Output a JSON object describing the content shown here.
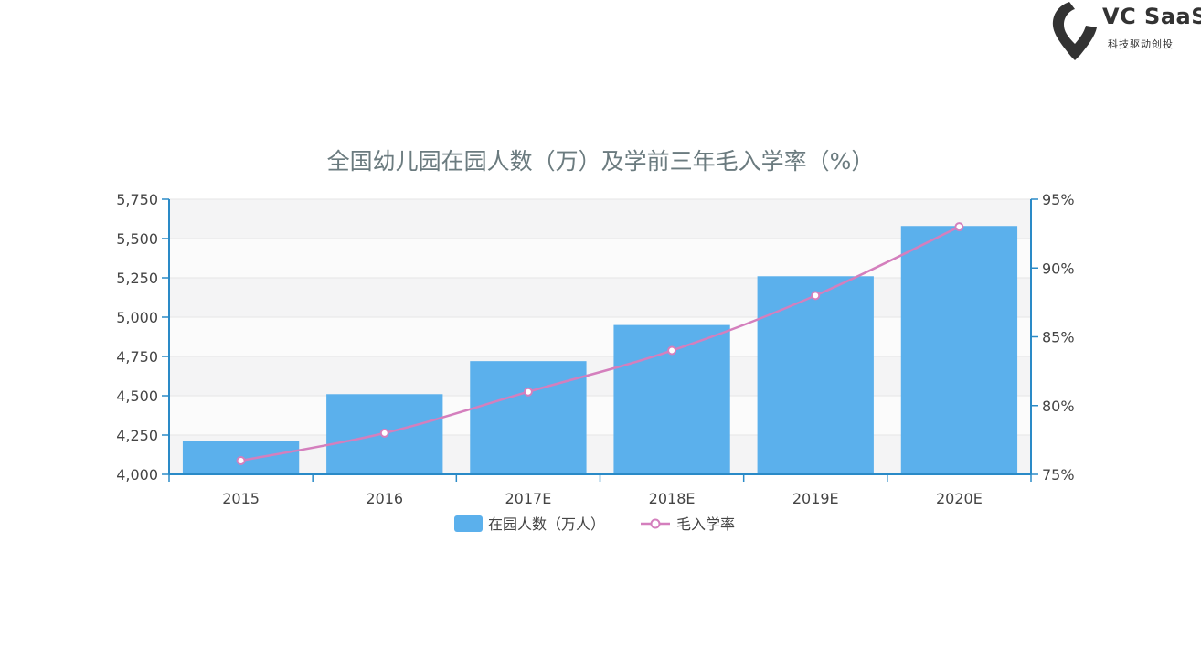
{
  "brand": {
    "name": "VC SaaS",
    "tagline": "科技驱动创投",
    "logo_icon": "location-pin-icon",
    "color": "#333333"
  },
  "chart_data": {
    "type": "bar",
    "title": "全国幼儿园在园人数（万）及学前三年毛入学率（%）",
    "categories": [
      "2015",
      "2016",
      "2017E",
      "2018E",
      "2019E",
      "2020E"
    ],
    "series": [
      {
        "name": "在园人数（万人）",
        "type": "bar",
        "axis": "left",
        "values": [
          4210,
          4510,
          4720,
          4950,
          5260,
          5580
        ],
        "color": "#5bb0ec"
      },
      {
        "name": "毛入学率",
        "type": "line",
        "axis": "right",
        "values": [
          76,
          78,
          81,
          84,
          88,
          93
        ],
        "color": "#d47fbd"
      }
    ],
    "y_left": {
      "min": 4000,
      "max": 5750,
      "ticks": [
        4000,
        4250,
        4500,
        4750,
        5000,
        5250,
        5500,
        5750
      ],
      "tick_labels": [
        "4,000",
        "4,250",
        "4,500",
        "4,750",
        "5,000",
        "5,250",
        "5,500",
        "5,750"
      ]
    },
    "y_right": {
      "min": 75,
      "max": 95,
      "ticks": [
        75,
        80,
        85,
        90,
        95
      ],
      "tick_labels": [
        "75%",
        "80%",
        "85%",
        "90%",
        "95%"
      ]
    },
    "legend_position": "bottom",
    "grid": true,
    "axis_color": "#2a8ac7",
    "text_color": "#444444"
  }
}
